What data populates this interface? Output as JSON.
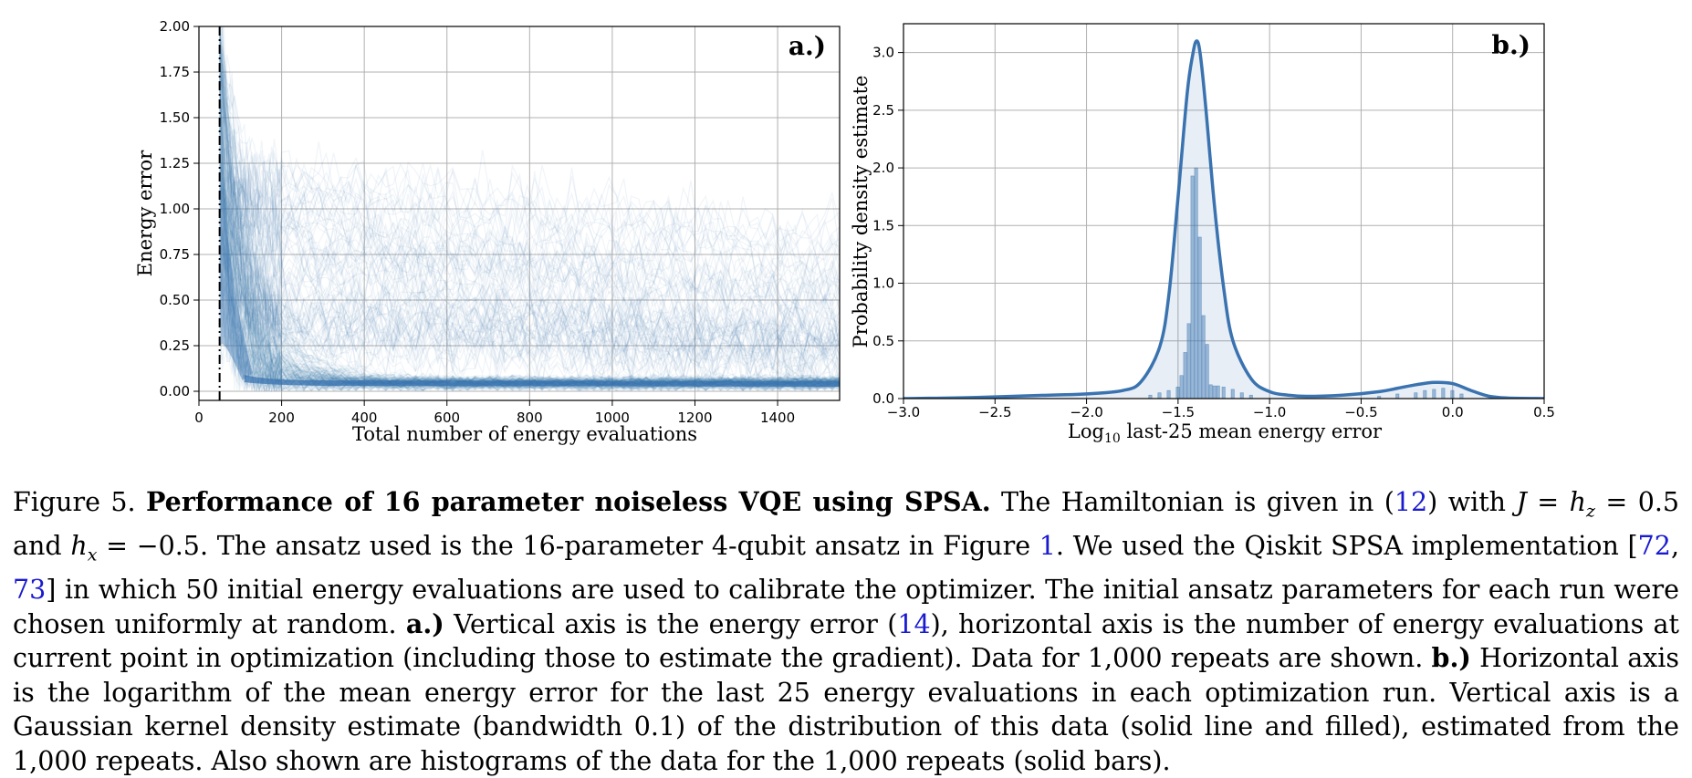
{
  "figure": {
    "panel_a": {
      "tag": "a.)",
      "xlabel": "Total number of energy evaluations",
      "ylabel": "Energy error",
      "xticks": [
        "0",
        "200",
        "400",
        "600",
        "800",
        "1000",
        "1200",
        "1400"
      ],
      "yticks": [
        "0.00",
        "0.25",
        "0.50",
        "0.75",
        "1.00",
        "1.25",
        "1.50",
        "1.75",
        "2.00"
      ]
    },
    "panel_b": {
      "tag": "b.)",
      "xlabel_prefix": "Log",
      "xlabel_sub": "10",
      "xlabel_suffix": " last-25 mean energy error",
      "ylabel": "Probability density estimate",
      "xticks": [
        "−3.0",
        "−2.5",
        "−2.0",
        "−1.5",
        "−1.0",
        "−0.5",
        "0.0",
        "0.5"
      ],
      "yticks": [
        "0.0",
        "0.5",
        "1.0",
        "1.5",
        "2.0",
        "2.5",
        "3.0"
      ]
    }
  },
  "chart_data": [
    {
      "type": "line",
      "panel": "a",
      "description_of_marks": "1,000 SPSA energy-error traces",
      "xlim": [
        0,
        1550
      ],
      "ylim": [
        -0.05,
        2.0
      ],
      "calibration_line_x": 50,
      "grid": true,
      "color": "#3a73b0",
      "typical_trace": {
        "x": [
          50,
          100,
          200,
          400,
          800,
          1550
        ],
        "y_median": [
          0.85,
          0.3,
          0.08,
          0.05,
          0.045,
          0.04
        ]
      }
    },
    {
      "type": "area",
      "panel": "b",
      "xlim": [
        -3.0,
        0.5
      ],
      "ylim": [
        0,
        3.25
      ],
      "grid": true,
      "color": "#3a73b0",
      "kde": {
        "x": [
          -3.0,
          -2.6,
          -2.2,
          -2.0,
          -1.8,
          -1.7,
          -1.6,
          -1.55,
          -1.5,
          -1.45,
          -1.42,
          -1.4,
          -1.38,
          -1.35,
          -1.3,
          -1.25,
          -1.2,
          -1.1,
          -1.0,
          -0.9,
          -0.8,
          -0.6,
          -0.4,
          -0.3,
          -0.2,
          -0.1,
          0.0,
          0.1,
          0.2,
          0.3,
          0.5
        ],
        "y": [
          0.0,
          0.01,
          0.03,
          0.04,
          0.07,
          0.15,
          0.45,
          0.9,
          1.75,
          2.65,
          2.98,
          3.1,
          3.0,
          2.55,
          1.65,
          0.95,
          0.5,
          0.17,
          0.06,
          0.03,
          0.02,
          0.03,
          0.06,
          0.09,
          0.12,
          0.14,
          0.13,
          0.07,
          0.02,
          0.005,
          0.0
        ]
      },
      "histogram": {
        "x": [
          -1.65,
          -1.6,
          -1.55,
          -1.5,
          -1.48,
          -1.46,
          -1.44,
          -1.42,
          -1.4,
          -1.38,
          -1.36,
          -1.34,
          -1.32,
          -1.3,
          -1.28,
          -1.25,
          -1.2,
          -1.15,
          -1.1,
          -0.4,
          -0.3,
          -0.2,
          -0.15,
          -0.1,
          -0.05,
          0.0,
          0.05
        ],
        "y": [
          0.03,
          0.05,
          0.07,
          0.1,
          0.2,
          0.4,
          0.65,
          1.93,
          2.0,
          1.4,
          0.72,
          0.47,
          0.12,
          0.11,
          0.11,
          0.1,
          0.08,
          0.05,
          0.03,
          0.02,
          0.04,
          0.05,
          0.07,
          0.08,
          0.09,
          0.07,
          0.04
        ],
        "bin_width": 0.02
      }
    }
  ],
  "caption": {
    "fig_label": "Figure 5.",
    "title": "Performance of 16 parameter noiseless VQE using SPSA.",
    "s1": "The Hamiltonian is given in (",
    "ref12": "12",
    "s2": ") with ",
    "J": "J",
    "eq1": " = ",
    "hz": "h",
    "hz_sub": "z",
    "val1": " = 0.5 and ",
    "hx": "h",
    "hx_sub": "x",
    "val2": " = −0.5.  The ansatz used is the 16-parameter 4-qubit ansatz in Figure ",
    "ref1": "1",
    "s3": ".  We used the Qiskit SPSA implementation [",
    "ref72": "72",
    "comma": ", ",
    "ref73": "73",
    "s4": "] in which 50 initial energy evaluations are used to calibrate the optimizer.  The initial ansatz parameters for each run were chosen uniformly at random. ",
    "a_label": "a.)",
    "s5": " Vertical axis is the energy error (",
    "ref14": "14",
    "s6": "), horizontal axis is the number of energy evaluations at current point in optimization (including those to estimate the gradient). Data for 1,000 repeats are shown. ",
    "b_label": "b.)",
    "s7": " Horizontal axis is the logarithm of the mean energy error for the last 25 energy evaluations in each optimization run.  Vertical axis is a Gaussian kernel density estimate (bandwidth 0.1) of the distribution of this data (solid line and filled), estimated from the 1,000 repeats.  Also shown are histograms of the data for the 1,000 repeats (solid bars)."
  }
}
